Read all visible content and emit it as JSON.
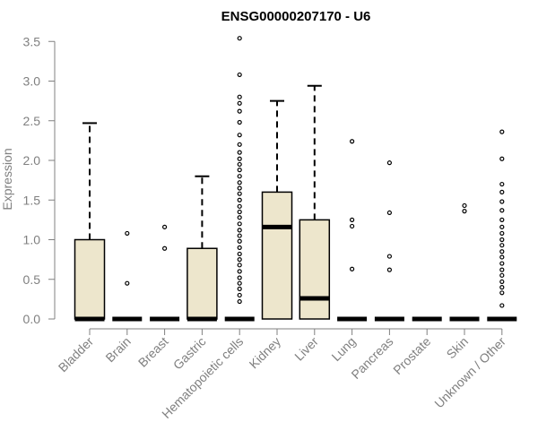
{
  "chart_data": {
    "type": "boxplot",
    "title": "ENSG00000207170 - U6",
    "xlabel": "",
    "ylabel": "Expression",
    "ylim": [
      0,
      3.55
    ],
    "yticks": [
      "0.0",
      "0.5",
      "1.0",
      "1.5",
      "2.0",
      "2.5",
      "3.0",
      "3.5"
    ],
    "grid": false,
    "legend": "none",
    "colors": {
      "box_fill": "#ede6cc",
      "box_stroke": "#000000",
      "axis": "#808080",
      "tick_text": "#808080"
    },
    "categories": [
      "Bladder",
      "Brain",
      "Breast",
      "Gastric",
      "Hematopoietic cells",
      "Kidney",
      "Liver",
      "Lung",
      "Pancreas",
      "Prostate",
      "Skin",
      "Unknown / Other"
    ],
    "boxes": [
      {
        "category": "Bladder",
        "min": 0,
        "q1": 0,
        "median": 0,
        "q3": 1.0,
        "max": 2.47,
        "outliers": []
      },
      {
        "category": "Brain",
        "min": 0,
        "q1": 0,
        "median": 0,
        "q3": 0,
        "max": 0,
        "outliers": [
          0.45,
          1.08
        ]
      },
      {
        "category": "Breast",
        "min": 0,
        "q1": 0,
        "median": 0,
        "q3": 0,
        "max": 0,
        "outliers": [
          0.89,
          1.16
        ]
      },
      {
        "category": "Gastric",
        "min": 0,
        "q1": 0,
        "median": 0,
        "q3": 0.89,
        "max": 1.8,
        "outliers": []
      },
      {
        "category": "Hematopoietic cells",
        "min": 0,
        "q1": 0,
        "median": 0,
        "q3": 0,
        "max": 0,
        "outliers": [
          0.22,
          0.3,
          0.38,
          0.45,
          0.52,
          0.6,
          0.68,
          0.75,
          0.82,
          0.9,
          0.98,
          1.05,
          1.12,
          1.2,
          1.28,
          1.35,
          1.42,
          1.5,
          1.58,
          1.65,
          1.72,
          1.8,
          1.88,
          1.95,
          2.02,
          2.1,
          2.2,
          2.32,
          2.48,
          2.62,
          2.72,
          2.8,
          3.08,
          3.54
        ]
      },
      {
        "category": "Kidney",
        "min": 0,
        "q1": 0,
        "median": 1.16,
        "q3": 1.6,
        "max": 2.75,
        "outliers": []
      },
      {
        "category": "Liver",
        "min": 0,
        "q1": 0,
        "median": 0.26,
        "q3": 1.25,
        "max": 2.94,
        "outliers": []
      },
      {
        "category": "Lung",
        "min": 0,
        "q1": 0,
        "median": 0,
        "q3": 0,
        "max": 0,
        "outliers": [
          0.63,
          1.17,
          1.25,
          2.24
        ]
      },
      {
        "category": "Pancreas",
        "min": 0,
        "q1": 0,
        "median": 0,
        "q3": 0,
        "max": 0,
        "outliers": [
          0.62,
          0.79,
          1.34,
          1.97
        ]
      },
      {
        "category": "Prostate",
        "min": 0,
        "q1": 0,
        "median": 0,
        "q3": 0,
        "max": 0,
        "outliers": []
      },
      {
        "category": "Skin",
        "min": 0,
        "q1": 0,
        "median": 0,
        "q3": 0,
        "max": 0,
        "outliers": [
          1.36,
          1.43
        ]
      },
      {
        "category": "Unknown / Other",
        "min": 0,
        "q1": 0,
        "median": 0,
        "q3": 0,
        "max": 0,
        "outliers": [
          0.17,
          0.33,
          0.4,
          0.47,
          0.55,
          0.62,
          0.7,
          0.78,
          0.85,
          0.93,
          1.0,
          1.08,
          1.16,
          1.25,
          1.37,
          1.48,
          1.6,
          1.7,
          2.02,
          2.36
        ]
      }
    ]
  }
}
